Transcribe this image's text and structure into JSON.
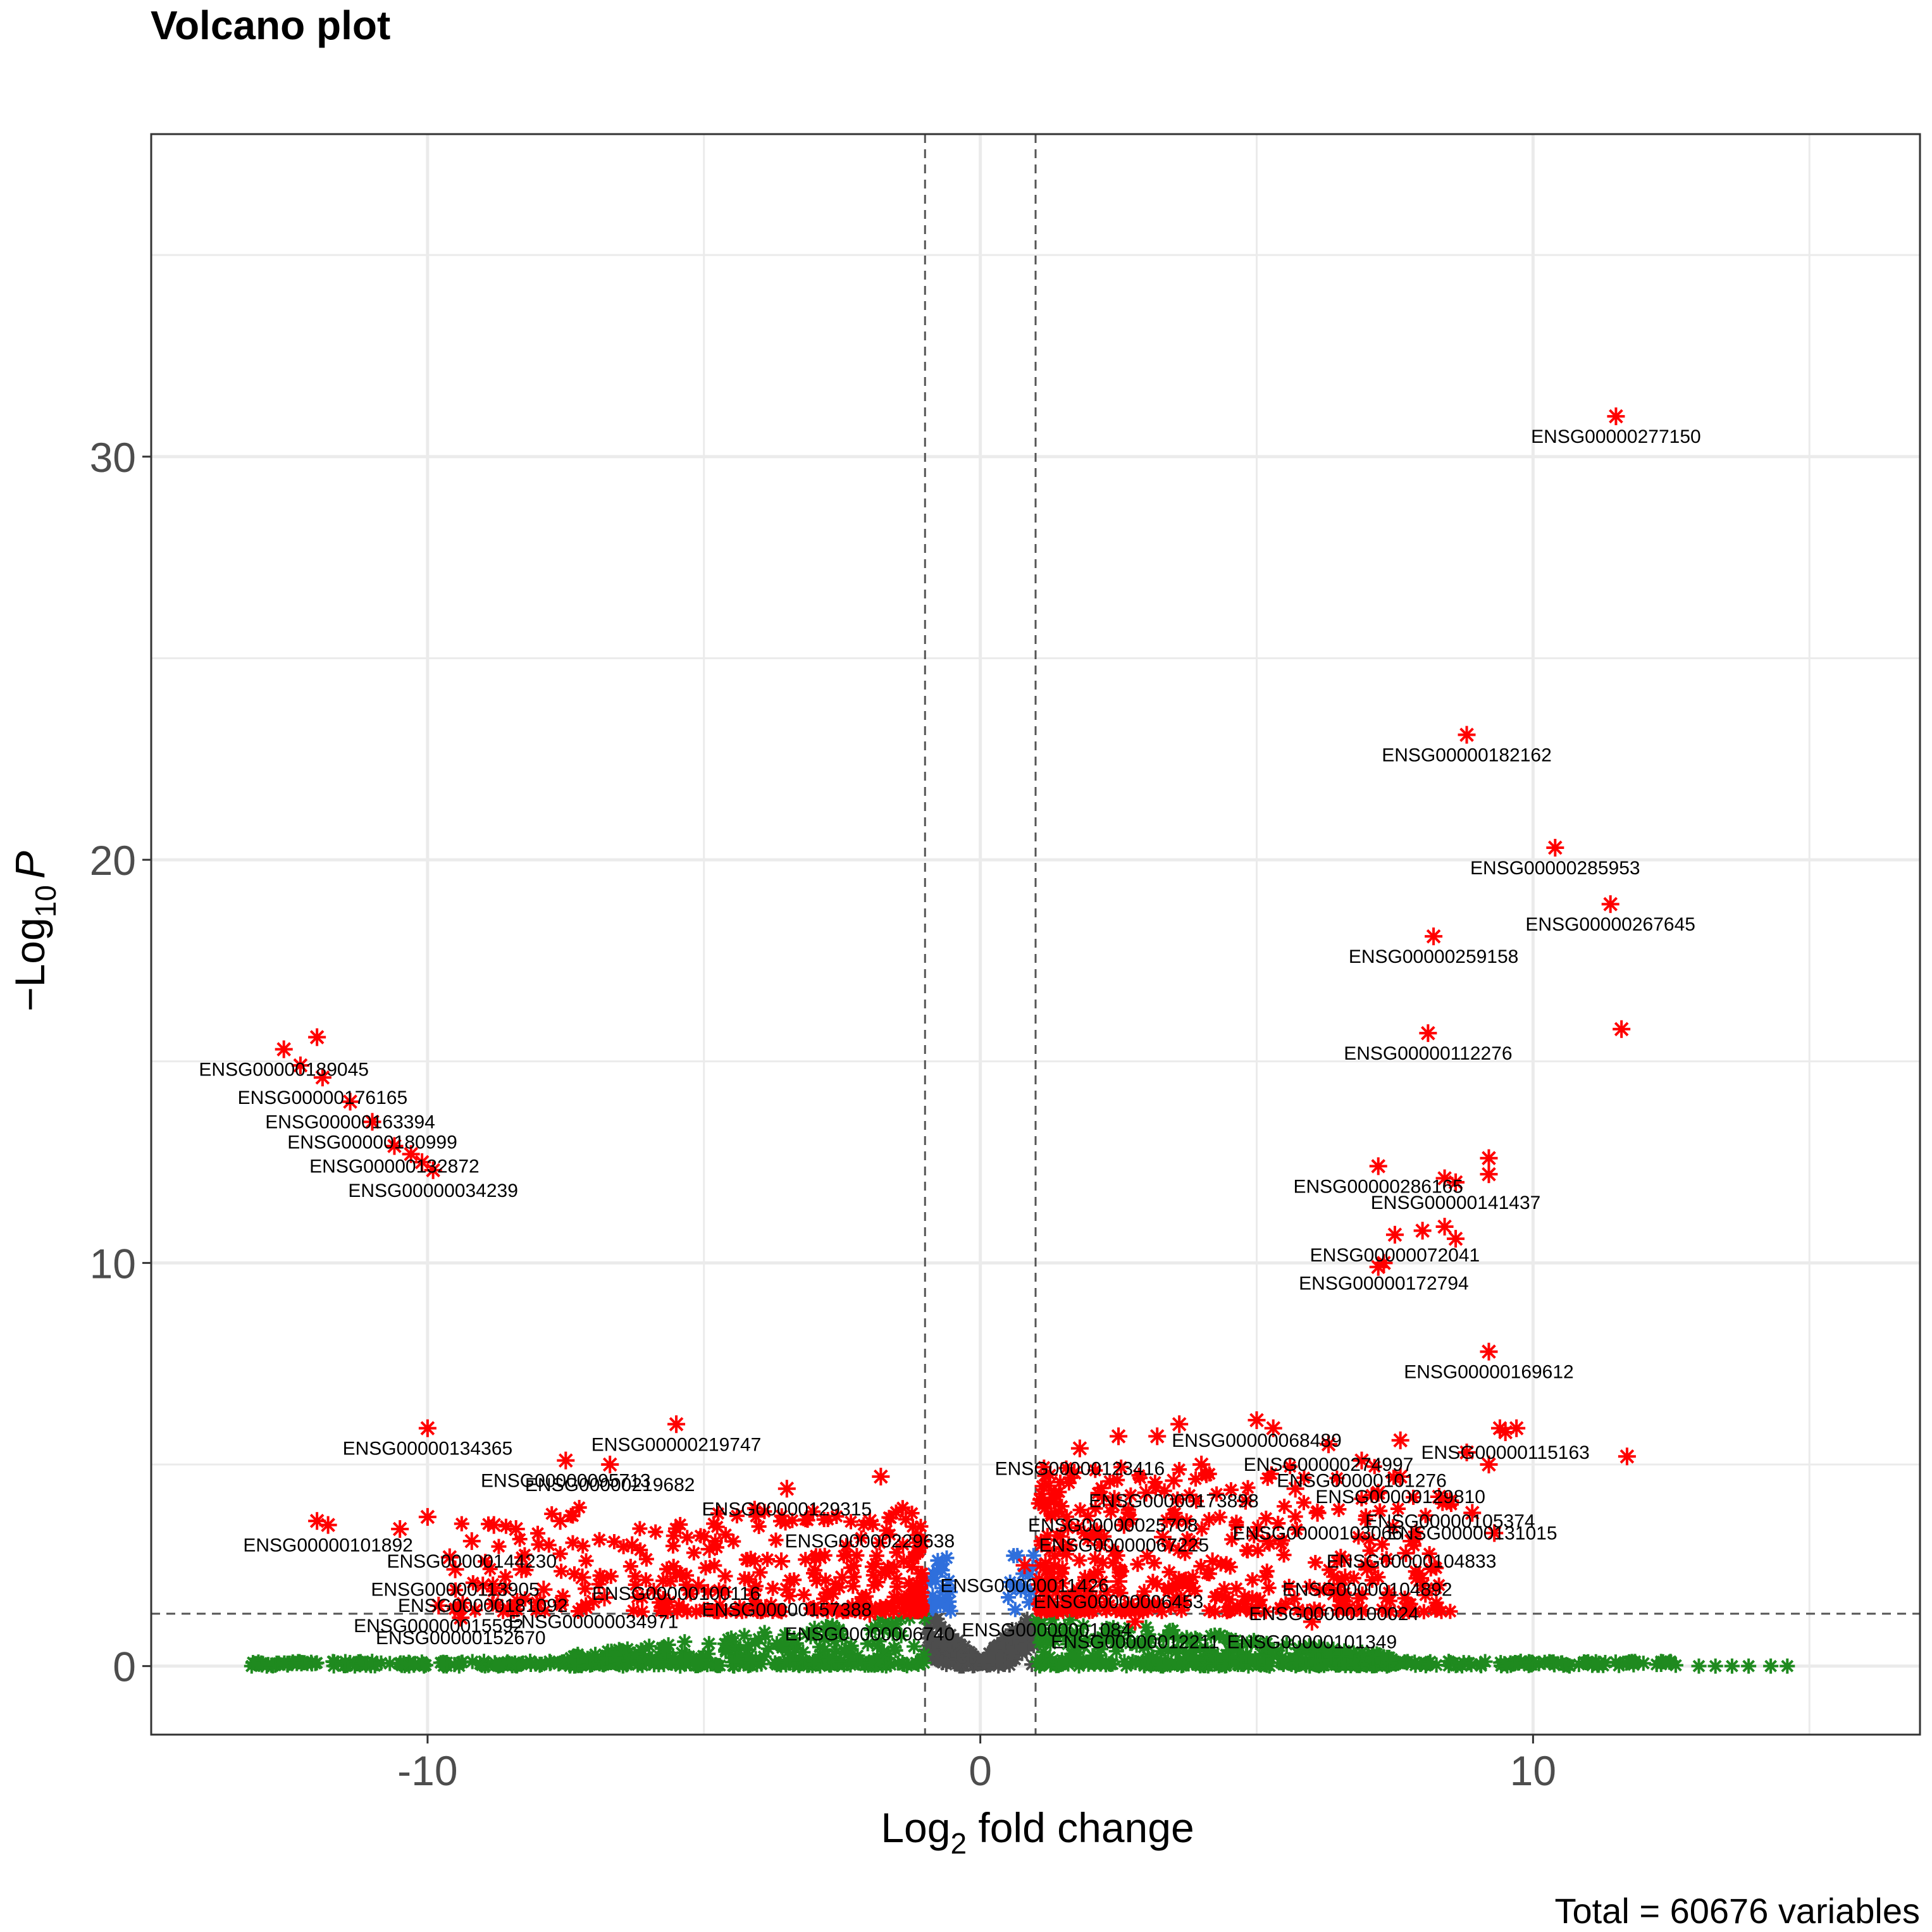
{
  "chart_data": {
    "type": "scatter",
    "title": "Volcano plot",
    "xlabel_main": "Log",
    "xlabel_sub": "2",
    "xlabel_rest": " fold change",
    "ylabel_prefix": "−Log",
    "ylabel_sub": "10",
    "ylabel_var": "P",
    "caption": "Total = 60676 variables",
    "xlim": [
      -15,
      17
    ],
    "ylim": [
      -1.7,
      38
    ],
    "x_ticks": [
      -10,
      0,
      10
    ],
    "x_tick_labels": [
      "-10",
      "0",
      "10"
    ],
    "y_ticks": [
      0,
      10,
      20,
      30
    ],
    "y_tick_labels": [
      "0",
      "10",
      "20",
      "30"
    ],
    "fc_cutoff": 1,
    "p_cutoff_log10": 1.3,
    "colors": {
      "ns": "#4d4d4d",
      "log2fc": "#1f8a1f",
      "p": "#2f6fdc",
      "p_and_log2fc": "#ff0000",
      "grid": "#ebebeb",
      "axis_text": "#4d4d4d"
    },
    "legend": "none",
    "labeled_points": [
      {
        "x": 11.5,
        "y": 31.0,
        "label": "ENSG00000277150"
      },
      {
        "x": 8.8,
        "y": 23.1,
        "label": "ENSG00000182162"
      },
      {
        "x": 10.4,
        "y": 20.3,
        "label": "ENSG00000285953"
      },
      {
        "x": 11.4,
        "y": 18.9,
        "label": "ENSG00000267645"
      },
      {
        "x": 8.2,
        "y": 18.1,
        "label": "ENSG00000259158"
      },
      {
        "x": 8.1,
        "y": 15.7,
        "label": "ENSG00000112276"
      },
      {
        "x": 7.2,
        "y": 12.4,
        "label": "ENSG00000286165"
      },
      {
        "x": 8.6,
        "y": 12.0,
        "label": "ENSG00000141437"
      },
      {
        "x": 7.5,
        "y": 10.7,
        "label": "ENSG00000072041"
      },
      {
        "x": 7.3,
        "y": 10.0,
        "label": "ENSG00000172794"
      },
      {
        "x": 9.2,
        "y": 7.8,
        "label": "ENSG00000169612"
      },
      {
        "x": -12.6,
        "y": 15.3,
        "label": "ENSG00000189045"
      },
      {
        "x": -11.9,
        "y": 14.6,
        "label": "ENSG00000176165"
      },
      {
        "x": -11.4,
        "y": 14.0,
        "label": "ENSG00000163394"
      },
      {
        "x": -11.0,
        "y": 13.5,
        "label": "ENSG00000180999"
      },
      {
        "x": -10.6,
        "y": 12.9,
        "label": "ENSG00000132872"
      },
      {
        "x": -9.9,
        "y": 12.3,
        "label": "ENSG00000034239"
      },
      {
        "x": -10.0,
        "y": 5.9,
        "label": "ENSG00000134365"
      },
      {
        "x": -5.5,
        "y": 6.0,
        "label": "ENSG00000219747"
      },
      {
        "x": -7.5,
        "y": 5.1,
        "label": "ENSG00000095713"
      },
      {
        "x": -6.7,
        "y": 5.0,
        "label": "ENSG00000219682"
      },
      {
        "x": -3.5,
        "y": 4.4,
        "label": "ENSG00000129315"
      },
      {
        "x": -11.8,
        "y": 3.5,
        "label": "ENSG00000101892"
      },
      {
        "x": -9.2,
        "y": 3.1,
        "label": "ENSG00000144230"
      },
      {
        "x": -2.0,
        "y": 3.6,
        "label": "ENSG00000229638"
      },
      {
        "x": -9.5,
        "y": 2.4,
        "label": "ENSG00000113905"
      },
      {
        "x": -5.5,
        "y": 2.3,
        "label": "ENSG00000100116"
      },
      {
        "x": -9.0,
        "y": 2.0,
        "label": "ENSG00000181092"
      },
      {
        "x": -3.5,
        "y": 1.9,
        "label": "ENSG00000157388"
      },
      {
        "x": -9.8,
        "y": 1.5,
        "label": "ENSG00000015592"
      },
      {
        "x": -7.0,
        "y": 1.6,
        "label": "ENSG00000034971"
      },
      {
        "x": -9.4,
        "y": 1.2,
        "label": "ENSG00000152670"
      },
      {
        "x": -2.0,
        "y": 1.3,
        "label": "ENSG00000006740"
      },
      {
        "x": 5.0,
        "y": 6.1,
        "label": "ENSG00000068489"
      },
      {
        "x": 6.3,
        "y": 5.5,
        "label": "ENSG00000274997"
      },
      {
        "x": 9.5,
        "y": 5.8,
        "label": "ENSG00000115163"
      },
      {
        "x": 1.8,
        "y": 5.4,
        "label": "ENSG00000123416"
      },
      {
        "x": 6.9,
        "y": 5.1,
        "label": "ENSG00000101276"
      },
      {
        "x": 7.6,
        "y": 4.7,
        "label": "ENSG00000129810"
      },
      {
        "x": 3.5,
        "y": 4.6,
        "label": "ENSG00000173898"
      },
      {
        "x": 8.5,
        "y": 4.1,
        "label": "ENSG00000105374"
      },
      {
        "x": 2.4,
        "y": 4.0,
        "label": "ENSG00000025708"
      },
      {
        "x": 6.1,
        "y": 3.8,
        "label": "ENSG00000103066"
      },
      {
        "x": 8.9,
        "y": 3.8,
        "label": "ENSG00000131015"
      },
      {
        "x": 2.6,
        "y": 3.5,
        "label": "ENSG00000067225"
      },
      {
        "x": 7.8,
        "y": 3.1,
        "label": "ENSG00000104833"
      },
      {
        "x": 0.8,
        "y": 2.5,
        "label": "ENSG00000011426"
      },
      {
        "x": 7.0,
        "y": 2.4,
        "label": "ENSG00000104892"
      },
      {
        "x": 2.5,
        "y": 2.1,
        "label": "ENSG00000006453"
      },
      {
        "x": 6.4,
        "y": 1.8,
        "label": "ENSG00000100024"
      },
      {
        "x": 1.2,
        "y": 1.4,
        "label": "ENSG00000001084"
      },
      {
        "x": 2.8,
        "y": 1.1,
        "label": "ENSG00000012211"
      },
      {
        "x": 6.0,
        "y": 1.1,
        "label": "ENSG00000101349"
      }
    ],
    "other_significant_points": [
      [
        11.6,
        15.8
      ],
      [
        9.2,
        12.6
      ],
      [
        9.2,
        12.2
      ],
      [
        8.4,
        12.1
      ],
      [
        8.0,
        10.8
      ],
      [
        8.4,
        10.9
      ],
      [
        8.6,
        10.6
      ],
      [
        7.2,
        9.9
      ],
      [
        9.4,
        5.9
      ],
      [
        9.7,
        5.9
      ],
      [
        11.7,
        5.2
      ],
      [
        8.8,
        5.3
      ],
      [
        9.2,
        5.0
      ],
      [
        7.6,
        5.6
      ],
      [
        5.3,
        5.9
      ],
      [
        3.6,
        6.0
      ],
      [
        3.2,
        5.7
      ],
      [
        2.5,
        5.7
      ],
      [
        4.0,
        5.0
      ],
      [
        1.7,
        4.8
      ],
      [
        3.0,
        4.3
      ],
      [
        4.8,
        4.1
      ],
      [
        5.7,
        4.4
      ],
      [
        7.2,
        4.3
      ],
      [
        8.3,
        4.2
      ],
      [
        9.3,
        3.3
      ],
      [
        7.7,
        2.8
      ],
      [
        5.2,
        3.1
      ],
      [
        3.3,
        3.2
      ],
      [
        1.6,
        3.0
      ],
      [
        4.2,
        2.6
      ],
      [
        6.6,
        2.2
      ],
      [
        8.0,
        2.0
      ],
      [
        -12.0,
        3.6
      ],
      [
        -10.0,
        3.7
      ],
      [
        -10.5,
        3.4
      ],
      [
        -7.6,
        3.6
      ],
      [
        -6.3,
        3.0
      ],
      [
        -4.9,
        2.9
      ],
      [
        -3.6,
        2.6
      ],
      [
        -2.9,
        2.7
      ],
      [
        -1.8,
        4.7
      ],
      [
        -7.2,
        2.2
      ],
      [
        -8.3,
        2.4
      ],
      [
        -5.1,
        2.0
      ],
      [
        -4.1,
        1.9
      ],
      [
        -2.5,
        2.2
      ],
      [
        -6.8,
        1.7
      ],
      [
        -7.9,
        1.9
      ],
      [
        -8.8,
        3.5
      ],
      [
        -8.4,
        3.4
      ],
      [
        -9.6,
        2.7
      ],
      [
        -12.0,
        15.6
      ],
      [
        -12.3,
        14.9
      ],
      [
        -10.3,
        12.7
      ],
      [
        -10.1,
        12.5
      ]
    ]
  }
}
